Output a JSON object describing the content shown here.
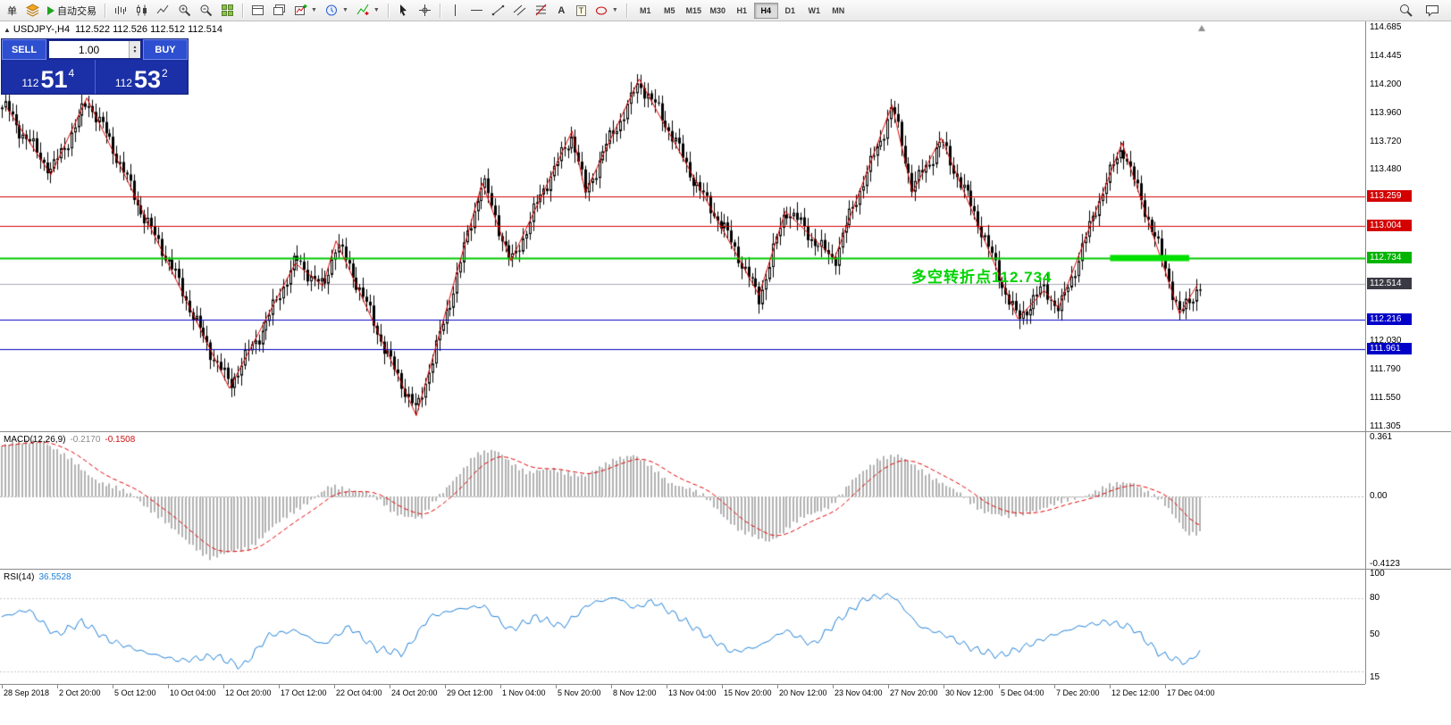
{
  "toolbar": {
    "new_order_label": "单",
    "autotrading_label": "自动交易",
    "text_tool_label": "A",
    "label_tool_label": "T",
    "timeframes": [
      "M1",
      "M5",
      "M15",
      "M30",
      "H1",
      "H4",
      "D1",
      "W1",
      "MN"
    ],
    "active_timeframe": "H4"
  },
  "chart": {
    "title_symbol": "USDJPY-,H4",
    "title_ohlc": "112.522 112.526 112.512 112.514",
    "trade_panel": {
      "sell_label": "SELL",
      "buy_label": "BUY",
      "volume": "1.00",
      "bid_prefix": "112",
      "bid_big": "51",
      "bid_sup": "4",
      "ask_prefix": "112",
      "ask_big": "53",
      "ask_sup": "2"
    },
    "annotation": {
      "text": "多空转折点112.734",
      "color": "#00d400"
    },
    "price_axis": {
      "labels": [
        {
          "value": 114.685,
          "text": "114.685"
        },
        {
          "value": 114.445,
          "text": "114.445"
        },
        {
          "value": 114.2,
          "text": "114.200"
        },
        {
          "value": 113.96,
          "text": "113.960"
        },
        {
          "value": 113.72,
          "text": "113.720"
        },
        {
          "value": 113.48,
          "text": "113.480"
        },
        {
          "value": 112.03,
          "text": "112.030"
        },
        {
          "value": 111.79,
          "text": "111.790"
        },
        {
          "value": 111.55,
          "text": "111.550"
        },
        {
          "value": 111.305,
          "text": "111.305"
        }
      ],
      "badges": [
        {
          "value": 113.259,
          "text": "113.259",
          "bg": "#d40000"
        },
        {
          "value": 113.004,
          "text": "113.004",
          "bg": "#d40000"
        },
        {
          "value": 112.734,
          "text": "112.734",
          "bg": "#00b400"
        },
        {
          "value": 112.514,
          "text": "112.514",
          "bg": "#3a3a45",
          "kind": "bid"
        },
        {
          "value": 112.216,
          "text": "112.216",
          "bg": "#0000c8"
        },
        {
          "value": 111.961,
          "text": "111.961",
          "bg": "#0000c8"
        }
      ]
    },
    "macd": {
      "name": "MACD(12,26,9)",
      "value1": "-0.2170",
      "value2": "-0.1508",
      "axis": [
        {
          "value": 0.361,
          "text": "0.361"
        },
        {
          "value": 0,
          "text": "0.00"
        },
        {
          "value": -0.4123,
          "text": "-0.4123"
        }
      ]
    },
    "rsi": {
      "name": "RSI(14)",
      "value": "36.5528",
      "axis": [
        {
          "value": 100,
          "text": "100"
        },
        {
          "value": 80,
          "text": "80"
        },
        {
          "value": 50,
          "text": "50"
        },
        {
          "value": 15,
          "text": "15"
        }
      ]
    }
  },
  "chart_data": {
    "type": "candlestick",
    "symbol": "USDJPY",
    "timeframe": "H4",
    "price_range": [
      111.305,
      114.685
    ],
    "bid_price": 112.514,
    "levels": [
      {
        "price": 113.259,
        "color": "#d40000",
        "width": 1
      },
      {
        "price": 113.004,
        "color": "#d40000",
        "width": 1
      },
      {
        "price": 112.734,
        "color": "#00c800",
        "width": 2
      },
      {
        "price": 112.216,
        "color": "#0000c0",
        "width": 1
      },
      {
        "price": 111.961,
        "color": "#0000c0",
        "width": 1
      }
    ],
    "thick_segment": {
      "price": 112.734,
      "t1": 0.925,
      "t2": 0.991,
      "color": "#00e000",
      "thickness": 7
    },
    "zigzag": [
      [
        0.004,
        114.01
      ],
      [
        0.041,
        113.44
      ],
      [
        0.071,
        114.09
      ],
      [
        0.19,
        111.63
      ],
      [
        0.245,
        112.69
      ],
      [
        0.268,
        112.5
      ],
      [
        0.279,
        112.88
      ],
      [
        0.346,
        111.4
      ],
      [
        0.401,
        113.37
      ],
      [
        0.425,
        112.71
      ],
      [
        0.476,
        113.81
      ],
      [
        0.487,
        113.29
      ],
      [
        0.532,
        114.25
      ],
      [
        0.632,
        112.42
      ],
      [
        0.654,
        113.13
      ],
      [
        0.695,
        112.73
      ],
      [
        0.743,
        114.03
      ],
      [
        0.76,
        113.29
      ],
      [
        0.784,
        113.75
      ],
      [
        0.848,
        112.22
      ],
      [
        0.87,
        112.46
      ],
      [
        0.882,
        112.31
      ],
      [
        0.935,
        113.71
      ],
      [
        0.983,
        112.26
      ],
      [
        0.998,
        112.51
      ]
    ],
    "macd_series": [
      [
        0,
        0.31
      ],
      [
        0.033,
        0.35
      ],
      [
        0.082,
        0.09
      ],
      [
        0.112,
        0
      ],
      [
        0.149,
        -0.24
      ],
      [
        0.175,
        -0.38
      ],
      [
        0.208,
        -0.3
      ],
      [
        0.245,
        -0.08
      ],
      [
        0.275,
        0.06
      ],
      [
        0.305,
        0.03
      ],
      [
        0.327,
        -0.1
      ],
      [
        0.35,
        -0.13
      ],
      [
        0.372,
        0.06
      ],
      [
        0.394,
        0.25
      ],
      [
        0.413,
        0.28
      ],
      [
        0.439,
        0.14
      ],
      [
        0.461,
        0.17
      ],
      [
        0.487,
        0.12
      ],
      [
        0.513,
        0.24
      ],
      [
        0.528,
        0.25
      ],
      [
        0.558,
        0.09
      ],
      [
        0.587,
        0
      ],
      [
        0.617,
        -0.22
      ],
      [
        0.64,
        -0.27
      ],
      [
        0.669,
        -0.13
      ],
      [
        0.692,
        -0.05
      ],
      [
        0.714,
        0.12
      ],
      [
        0.732,
        0.24
      ],
      [
        0.747,
        0.25
      ],
      [
        0.773,
        0.14
      ],
      [
        0.796,
        0.03
      ],
      [
        0.818,
        -0.08
      ],
      [
        0.84,
        -0.13
      ],
      [
        0.863,
        -0.08
      ],
      [
        0.892,
        -0.02
      ],
      [
        0.922,
        0.06
      ],
      [
        0.944,
        0.09
      ],
      [
        0.967,
        -0.02
      ],
      [
        0.989,
        -0.22
      ],
      [
        1,
        -0.217
      ]
    ],
    "rsi_series": [
      [
        0,
        65
      ],
      [
        0.022,
        71
      ],
      [
        0.045,
        50
      ],
      [
        0.067,
        61
      ],
      [
        0.089,
        46
      ],
      [
        0.119,
        36
      ],
      [
        0.149,
        29
      ],
      [
        0.178,
        33
      ],
      [
        0.201,
        24
      ],
      [
        0.223,
        50
      ],
      [
        0.245,
        54
      ],
      [
        0.268,
        42
      ],
      [
        0.29,
        57
      ],
      [
        0.312,
        39
      ],
      [
        0.335,
        35
      ],
      [
        0.357,
        65
      ],
      [
        0.379,
        71
      ],
      [
        0.402,
        74
      ],
      [
        0.424,
        54
      ],
      [
        0.446,
        65
      ],
      [
        0.468,
        57
      ],
      [
        0.491,
        76
      ],
      [
        0.513,
        81
      ],
      [
        0.528,
        72
      ],
      [
        0.543,
        78
      ],
      [
        0.565,
        65
      ],
      [
        0.587,
        50
      ],
      [
        0.61,
        36
      ],
      [
        0.632,
        41
      ],
      [
        0.654,
        54
      ],
      [
        0.677,
        42
      ],
      [
        0.699,
        63
      ],
      [
        0.721,
        80
      ],
      [
        0.743,
        83
      ],
      [
        0.766,
        57
      ],
      [
        0.788,
        50
      ],
      [
        0.81,
        39
      ],
      [
        0.833,
        33
      ],
      [
        0.855,
        41
      ],
      [
        0.877,
        50
      ],
      [
        0.899,
        57
      ],
      [
        0.922,
        61
      ],
      [
        0.944,
        56
      ],
      [
        0.966,
        35
      ],
      [
        0.989,
        27
      ],
      [
        1,
        36.55
      ]
    ],
    "rsi_levels": [
      80,
      20
    ],
    "time_labels": [
      "28 Sep 2018",
      "2 Oct 20:00",
      "5 Oct 12:00",
      "10 Oct 04:00",
      "12 Oct 20:00",
      "17 Oct 12:00",
      "22 Oct 04:00",
      "24 Oct 20:00",
      "29 Oct 12:00",
      "1 Nov 04:00",
      "5 Nov 20:00",
      "8 Nov 12:00",
      "13 Nov 04:00",
      "15 Nov 20:00",
      "20 Nov 12:00",
      "23 Nov 04:00",
      "27 Nov 20:00",
      "30 Nov 12:00",
      "5 Dec 04:00",
      "7 Dec 20:00",
      "12 Dec 12:00",
      "17 Dec 04:00"
    ]
  }
}
